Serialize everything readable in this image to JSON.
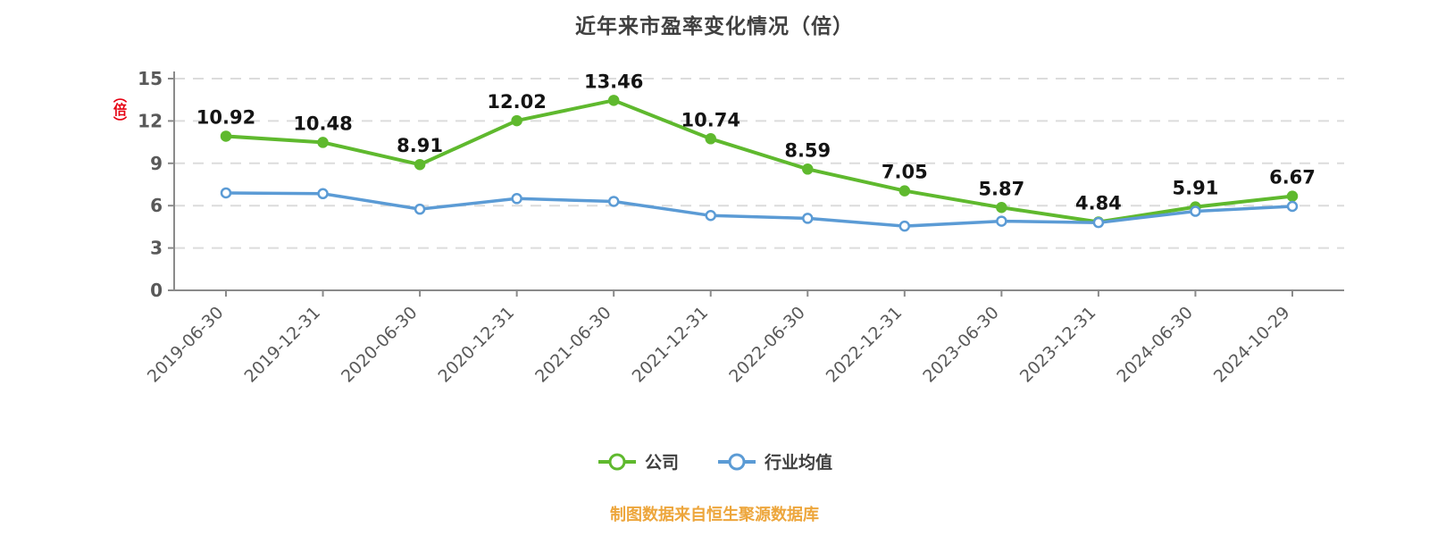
{
  "title": "近年来市盈率变化情况（倍）",
  "y_axis_unit": "（倍）",
  "footer": "制图数据来自恒生聚源数据库",
  "chart_data": {
    "type": "line",
    "title": "近年来市盈率变化情况（倍）",
    "categories": [
      "2019-06-30",
      "2019-12-31",
      "2020-06-30",
      "2020-12-31",
      "2021-06-30",
      "2021-12-31",
      "2022-06-30",
      "2022-12-31",
      "2023-06-30",
      "2023-12-31",
      "2024-06-30",
      "2024-10-29"
    ],
    "series": [
      {
        "name": "公司",
        "color": "#5fb92e",
        "show_labels": true,
        "values": [
          10.92,
          10.48,
          8.91,
          12.02,
          13.46,
          10.74,
          8.59,
          7.05,
          5.87,
          4.84,
          5.91,
          6.67
        ]
      },
      {
        "name": "行业均值",
        "color": "#5b9bd5",
        "show_labels": false,
        "values": [
          6.9,
          6.85,
          5.75,
          6.5,
          6.3,
          5.3,
          5.1,
          4.55,
          4.9,
          4.8,
          5.6,
          5.95
        ]
      }
    ],
    "xlabel": "",
    "ylabel": "（倍）",
    "ylim": [
      0,
      15
    ],
    "yticks": [
      0,
      3,
      6,
      9,
      12,
      15
    ],
    "grid": "horizontal-dashed",
    "legend_position": "bottom",
    "source_note": "制图数据来自恒生聚源数据库"
  }
}
